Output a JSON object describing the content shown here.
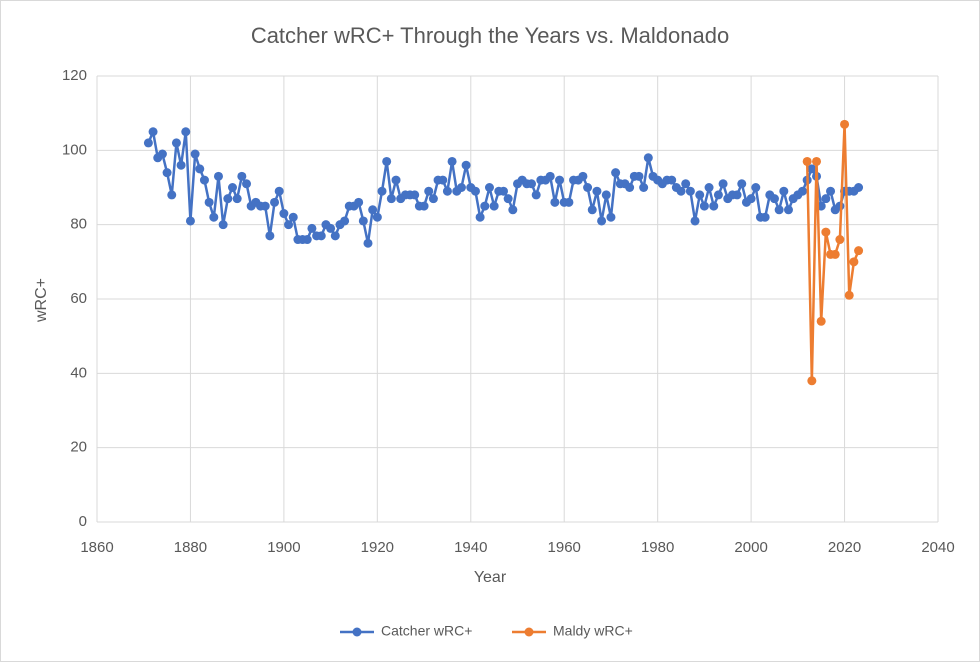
{
  "chart_data": {
    "type": "line",
    "title": "Catcher wRC+ Through the Years vs. Maldonado",
    "x_label": "Year",
    "y_label": "wRC+",
    "xlim": [
      1860,
      2040
    ],
    "xticks": [
      1860,
      1880,
      1900,
      1920,
      1940,
      1960,
      1980,
      2000,
      2020,
      2040
    ],
    "ylim": [
      0,
      120
    ],
    "yticks": [
      0,
      20,
      40,
      60,
      80,
      100,
      120
    ],
    "grid": true,
    "legend": "bottom",
    "markers": true,
    "series": [
      {
        "name": "Catcher wRC+",
        "color": "#4472c4",
        "x": [
          1871,
          1872,
          1873,
          1874,
          1875,
          1876,
          1877,
          1878,
          1879,
          1880,
          1881,
          1882,
          1883,
          1884,
          1885,
          1886,
          1887,
          1888,
          1889,
          1890,
          1891,
          1892,
          1893,
          1894,
          1895,
          1896,
          1897,
          1898,
          1899,
          1900,
          1901,
          1902,
          1903,
          1904,
          1905,
          1906,
          1907,
          1908,
          1909,
          1910,
          1911,
          1912,
          1913,
          1914,
          1915,
          1916,
          1917,
          1918,
          1919,
          1920,
          1921,
          1922,
          1923,
          1924,
          1925,
          1926,
          1927,
          1928,
          1929,
          1930,
          1931,
          1932,
          1933,
          1934,
          1935,
          1936,
          1937,
          1938,
          1939,
          1940,
          1941,
          1942,
          1943,
          1944,
          1945,
          1946,
          1947,
          1948,
          1949,
          1950,
          1951,
          1952,
          1953,
          1954,
          1955,
          1956,
          1957,
          1958,
          1959,
          1960,
          1961,
          1962,
          1963,
          1964,
          1965,
          1966,
          1967,
          1968,
          1969,
          1970,
          1971,
          1972,
          1973,
          1974,
          1975,
          1976,
          1977,
          1978,
          1979,
          1980,
          1981,
          1982,
          1983,
          1984,
          1985,
          1986,
          1987,
          1988,
          1989,
          1990,
          1991,
          1992,
          1993,
          1994,
          1995,
          1996,
          1997,
          1998,
          1999,
          2000,
          2001,
          2002,
          2003,
          2004,
          2005,
          2006,
          2007,
          2008,
          2009,
          2010,
          2011,
          2012,
          2013,
          2014,
          2015,
          2016,
          2017,
          2018,
          2019,
          2020,
          2021,
          2022,
          2023
        ],
        "values": [
          102,
          105,
          98,
          99,
          94,
          88,
          102,
          96,
          105,
          81,
          99,
          95,
          92,
          86,
          82,
          93,
          80,
          87,
          90,
          87,
          93,
          91,
          85,
          86,
          85,
          85,
          77,
          86,
          89,
          83,
          80,
          82,
          76,
          76,
          76,
          79,
          77,
          77,
          80,
          79,
          77,
          80,
          81,
          85,
          85,
          86,
          81,
          75,
          84,
          82,
          89,
          97,
          87,
          92,
          87,
          88,
          88,
          88,
          85,
          85,
          89,
          87,
          92,
          92,
          89,
          97,
          89,
          90,
          96,
          90,
          89,
          82,
          85,
          90,
          85,
          89,
          89,
          87,
          84,
          91,
          92,
          91,
          91,
          88,
          92,
          92,
          93,
          86,
          92,
          86,
          86,
          92,
          92,
          93,
          90,
          84,
          89,
          81,
          88,
          82,
          94,
          91,
          91,
          90,
          93,
          93,
          90,
          98,
          93,
          92,
          91,
          92,
          92,
          90,
          89,
          91,
          89,
          81,
          88,
          85,
          90,
          85,
          88,
          91,
          87,
          88,
          88,
          91,
          86,
          87,
          90,
          82,
          82,
          88,
          87,
          84,
          89,
          84,
          87,
          88,
          89,
          92,
          95,
          93,
          85,
          87,
          89,
          84,
          85,
          89,
          89,
          89,
          90
        ]
      },
      {
        "name": "Maldy wRC+",
        "color": "#ed7d31",
        "x": [
          2012,
          2013,
          2014,
          2015,
          2016,
          2017,
          2018,
          2019,
          2020,
          2021,
          2022,
          2023
        ],
        "values": [
          97,
          38,
          97,
          54,
          78,
          72,
          72,
          76,
          107,
          61,
          70,
          73
        ]
      }
    ]
  }
}
